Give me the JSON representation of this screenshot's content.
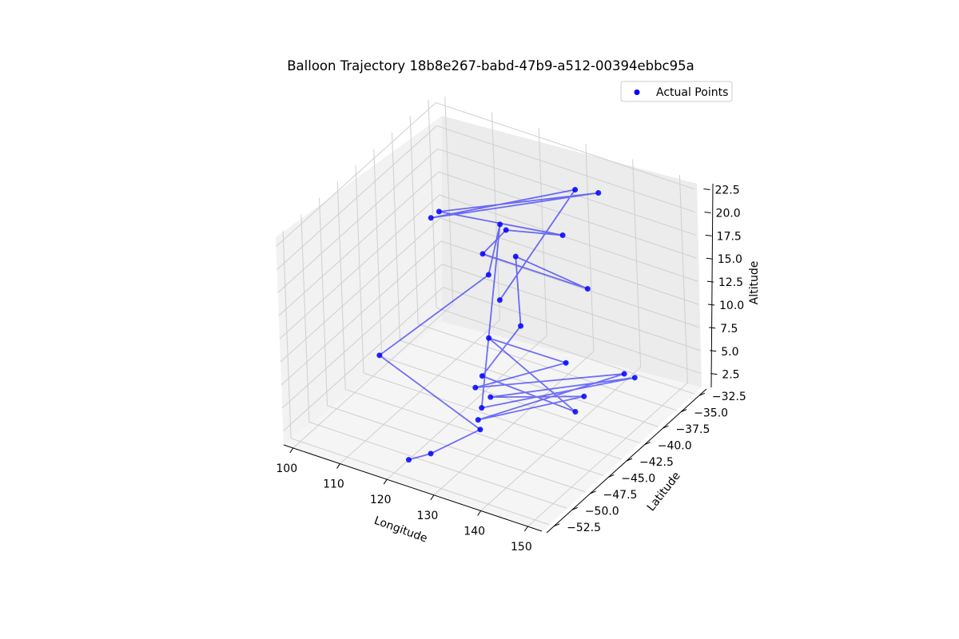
{
  "chart_data": {
    "type": "scatter",
    "title": "Balloon Trajectory 18b8e267-babd-47b9-a512-00394ebbc95a",
    "xlabel": "Longitude",
    "ylabel": "Latitude",
    "zlabel": "Altitude",
    "xticks": [
      "100",
      "110",
      "120",
      "130",
      "140",
      "150"
    ],
    "yticks": [
      "−52.5",
      "−50.0",
      "−47.5",
      "−45.0",
      "−42.5",
      "−40.0",
      "−37.5",
      "−35.0",
      "−32.5"
    ],
    "zticks": [
      "2.5",
      "5.0",
      "7.5",
      "10.0",
      "12.5",
      "15.0",
      "17.5",
      "20.0",
      "22.5"
    ],
    "legend": {
      "label": "Actual Points",
      "placement": "top-right"
    },
    "grid": true,
    "colors": {
      "series": "#0000ff",
      "pane": "#f2f2f2",
      "grid": "#cfcfcf"
    },
    "series": [
      {
        "name": "Actual Points",
        "points": [
          {
            "lon": 120,
            "lat": -50.5,
            "alt": 1.0
          },
          {
            "lon": 124,
            "lat": -50.0,
            "alt": 2.0
          },
          {
            "lon": 130,
            "lat": -47.0,
            "alt": 3.5
          },
          {
            "lon": 104,
            "lat": -44.0,
            "alt": 5.0
          },
          {
            "lon": 112,
            "lat": -34.0,
            "alt": 8.0
          },
          {
            "lon": 110,
            "lat": -31.0,
            "alt": 11.0
          },
          {
            "lon": 124,
            "lat": -43.0,
            "alt": 2.0
          },
          {
            "lon": 150,
            "lat": -38.5,
            "alt": 6.5
          },
          {
            "lon": 126,
            "lat": -43.0,
            "alt": 3.5
          },
          {
            "lon": 147,
            "lat": -43.5,
            "alt": 7.5
          },
          {
            "lon": 128,
            "lat": -46.0,
            "alt": 3.5
          },
          {
            "lon": 151,
            "lat": -40.5,
            "alt": 8.5
          },
          {
            "lon": 122,
            "lat": -42.5,
            "alt": 3.5
          },
          {
            "lon": 145,
            "lat": -44.5,
            "alt": 11.5
          },
          {
            "lon": 118,
            "lat": -38.0,
            "alt": 5.0
          },
          {
            "lon": 145,
            "lat": -43.5,
            "alt": 5.5
          },
          {
            "lon": 126,
            "lat": -44.0,
            "alt": 6.5
          },
          {
            "lon": 125,
            "lat": -38.0,
            "alt": 7.5
          },
          {
            "lon": 118,
            "lat": -34.0,
            "alt": 11.0
          },
          {
            "lon": 143,
            "lat": -40.0,
            "alt": 16.0
          },
          {
            "lon": 119,
            "lat": -39.0,
            "alt": 15.0
          },
          {
            "lon": 121,
            "lat": -37.0,
            "alt": 16.5
          },
          {
            "lon": 134,
            "lat": -37.5,
            "alt": 18.5
          },
          {
            "lon": 114,
            "lat": -41.5,
            "alt": 20.5
          },
          {
            "lon": 138,
            "lat": -35.0,
            "alt": 22.0
          },
          {
            "lon": 113,
            "lat": -42.0,
            "alt": 20.0
          },
          {
            "lon": 133,
            "lat": -35.0,
            "alt": 21.5
          },
          {
            "lon": 128,
            "lat": -42.5,
            "alt": 14.0
          }
        ]
      }
    ]
  }
}
